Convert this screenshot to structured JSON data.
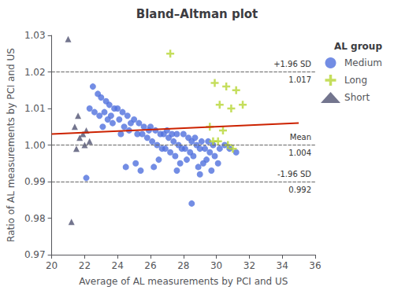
{
  "chart_data": {
    "type": "scatter",
    "title": "Bland–Altman plot",
    "xlabel": "Average of AL measurements by PCI and US",
    "ylabel": "Ratio of AL measurements by PCI and US",
    "xlim": [
      20,
      36
    ],
    "ylim": [
      0.97,
      1.03
    ],
    "xticks": [
      20,
      22,
      24,
      26,
      28,
      30,
      32,
      34,
      36
    ],
    "yticks": [
      0.97,
      0.98,
      0.99,
      {
        "value": 1.0,
        "label": "1.00"
      },
      1.01,
      1.02,
      1.03
    ],
    "grid": false,
    "legend": "upper right",
    "legend_title": "AL group",
    "series": [
      {
        "name": "Medium",
        "marker": "circle",
        "values": [
          [
            22.5,
            1.016
          ],
          [
            22.8,
            1.014
          ],
          [
            23.0,
            1.013
          ],
          [
            23.3,
            1.012
          ],
          [
            23.5,
            1.011
          ],
          [
            22.3,
            1.01
          ],
          [
            23.8,
            1.01
          ],
          [
            24.0,
            1.01
          ],
          [
            22.6,
            1.009
          ],
          [
            23.2,
            1.009
          ],
          [
            24.3,
            1.009
          ],
          [
            23.6,
            1.008
          ],
          [
            22.9,
            1.008
          ],
          [
            24.6,
            1.008
          ],
          [
            23.4,
            1.007
          ],
          [
            24.1,
            1.007
          ],
          [
            25.0,
            1.007
          ],
          [
            23.7,
            1.006
          ],
          [
            24.8,
            1.006
          ],
          [
            25.3,
            1.006
          ],
          [
            24.4,
            1.005
          ],
          [
            25.6,
            1.005
          ],
          [
            23.1,
            1.005
          ],
          [
            26.0,
            1.005
          ],
          [
            24.7,
            1.004
          ],
          [
            25.9,
            1.004
          ],
          [
            26.3,
            1.004
          ],
          [
            27.0,
            1.004
          ],
          [
            25.2,
            1.003
          ],
          [
            26.6,
            1.003
          ],
          [
            27.3,
            1.003
          ],
          [
            25.5,
            1.003
          ],
          [
            24.2,
            1.003
          ],
          [
            26.8,
            1.003
          ],
          [
            27.6,
            1.003
          ],
          [
            28.0,
            1.003
          ],
          [
            25.8,
            1.002
          ],
          [
            27.1,
            1.002
          ],
          [
            28.3,
            1.002
          ],
          [
            28.7,
            1.002
          ],
          [
            26.1,
            1.001
          ],
          [
            27.4,
            1.001
          ],
          [
            28.5,
            1.001
          ],
          [
            29.1,
            1.001
          ],
          [
            29.5,
            1.001
          ],
          [
            26.4,
            1.0
          ],
          [
            27.7,
            1.0
          ],
          [
            28.8,
            1.0
          ],
          [
            29.8,
            1.0
          ],
          [
            30.5,
            1.0
          ],
          [
            26.7,
            0.999
          ],
          [
            28.1,
            0.999
          ],
          [
            29.3,
            0.999
          ],
          [
            30.2,
            0.999
          ],
          [
            26.9,
            0.999
          ],
          [
            27.9,
            0.999
          ],
          [
            29.0,
            0.999
          ],
          [
            30.8,
            0.999
          ],
          [
            27.2,
            0.998
          ],
          [
            28.4,
            0.998
          ],
          [
            29.6,
            0.998
          ],
          [
            31.2,
            0.998
          ],
          [
            27.5,
            0.997
          ],
          [
            28.6,
            0.997
          ],
          [
            29.9,
            0.997
          ],
          [
            28.2,
            0.996
          ],
          [
            26.5,
            0.996
          ],
          [
            29.4,
            0.996
          ],
          [
            25.1,
            0.995
          ],
          [
            27.8,
            0.995
          ],
          [
            29.2,
            0.995
          ],
          [
            30.1,
            0.995
          ],
          [
            24.5,
            0.994
          ],
          [
            26.2,
            0.994
          ],
          [
            28.9,
            0.994
          ],
          [
            29.7,
            0.993
          ],
          [
            25.4,
            0.993
          ],
          [
            27.6,
            0.993
          ],
          [
            29.0,
            0.992
          ],
          [
            22.1,
            0.991
          ],
          [
            28.5,
            0.984
          ]
        ]
      },
      {
        "name": "Long",
        "marker": "plus",
        "values": [
          [
            27.2,
            1.025
          ],
          [
            29.9,
            1.017
          ],
          [
            30.6,
            1.016
          ],
          [
            31.2,
            1.015
          ],
          [
            30.2,
            1.011
          ],
          [
            31.6,
            1.011
          ],
          [
            30.9,
            1.01
          ],
          [
            29.6,
            1.005
          ],
          [
            30.4,
            1.004
          ],
          [
            29.8,
            1.001
          ],
          [
            30.1,
            1.001
          ],
          [
            30.7,
            1.0
          ],
          [
            31.0,
            0.999
          ]
        ]
      },
      {
        "name": "Short",
        "marker": "triangle",
        "values": [
          [
            21.0,
            1.029
          ],
          [
            21.6,
            1.008
          ],
          [
            21.4,
            1.005
          ],
          [
            22.1,
            1.004
          ],
          [
            21.9,
            1.003
          ],
          [
            21.7,
            1.002
          ],
          [
            22.3,
            1.001
          ],
          [
            22.0,
            1.0
          ],
          [
            21.5,
            0.999
          ],
          [
            21.2,
            0.979
          ]
        ]
      }
    ],
    "reference_lines": [
      {
        "value": 1.017,
        "text": "+1.96 SD",
        "label": "1.017",
        "line_style": "dashed"
      },
      {
        "value": 1.004,
        "text": "Mean",
        "label": "1.004",
        "line_style": "dashed"
      },
      {
        "value": 0.992,
        "text": "-1.96 SD",
        "label": "0.992",
        "line_style": "dashed"
      }
    ],
    "trend_line": {
      "x": [
        20,
        35
      ],
      "values": [
        1.003,
        1.006
      ],
      "color": "#cc2200",
      "line_style": "solid"
    }
  }
}
